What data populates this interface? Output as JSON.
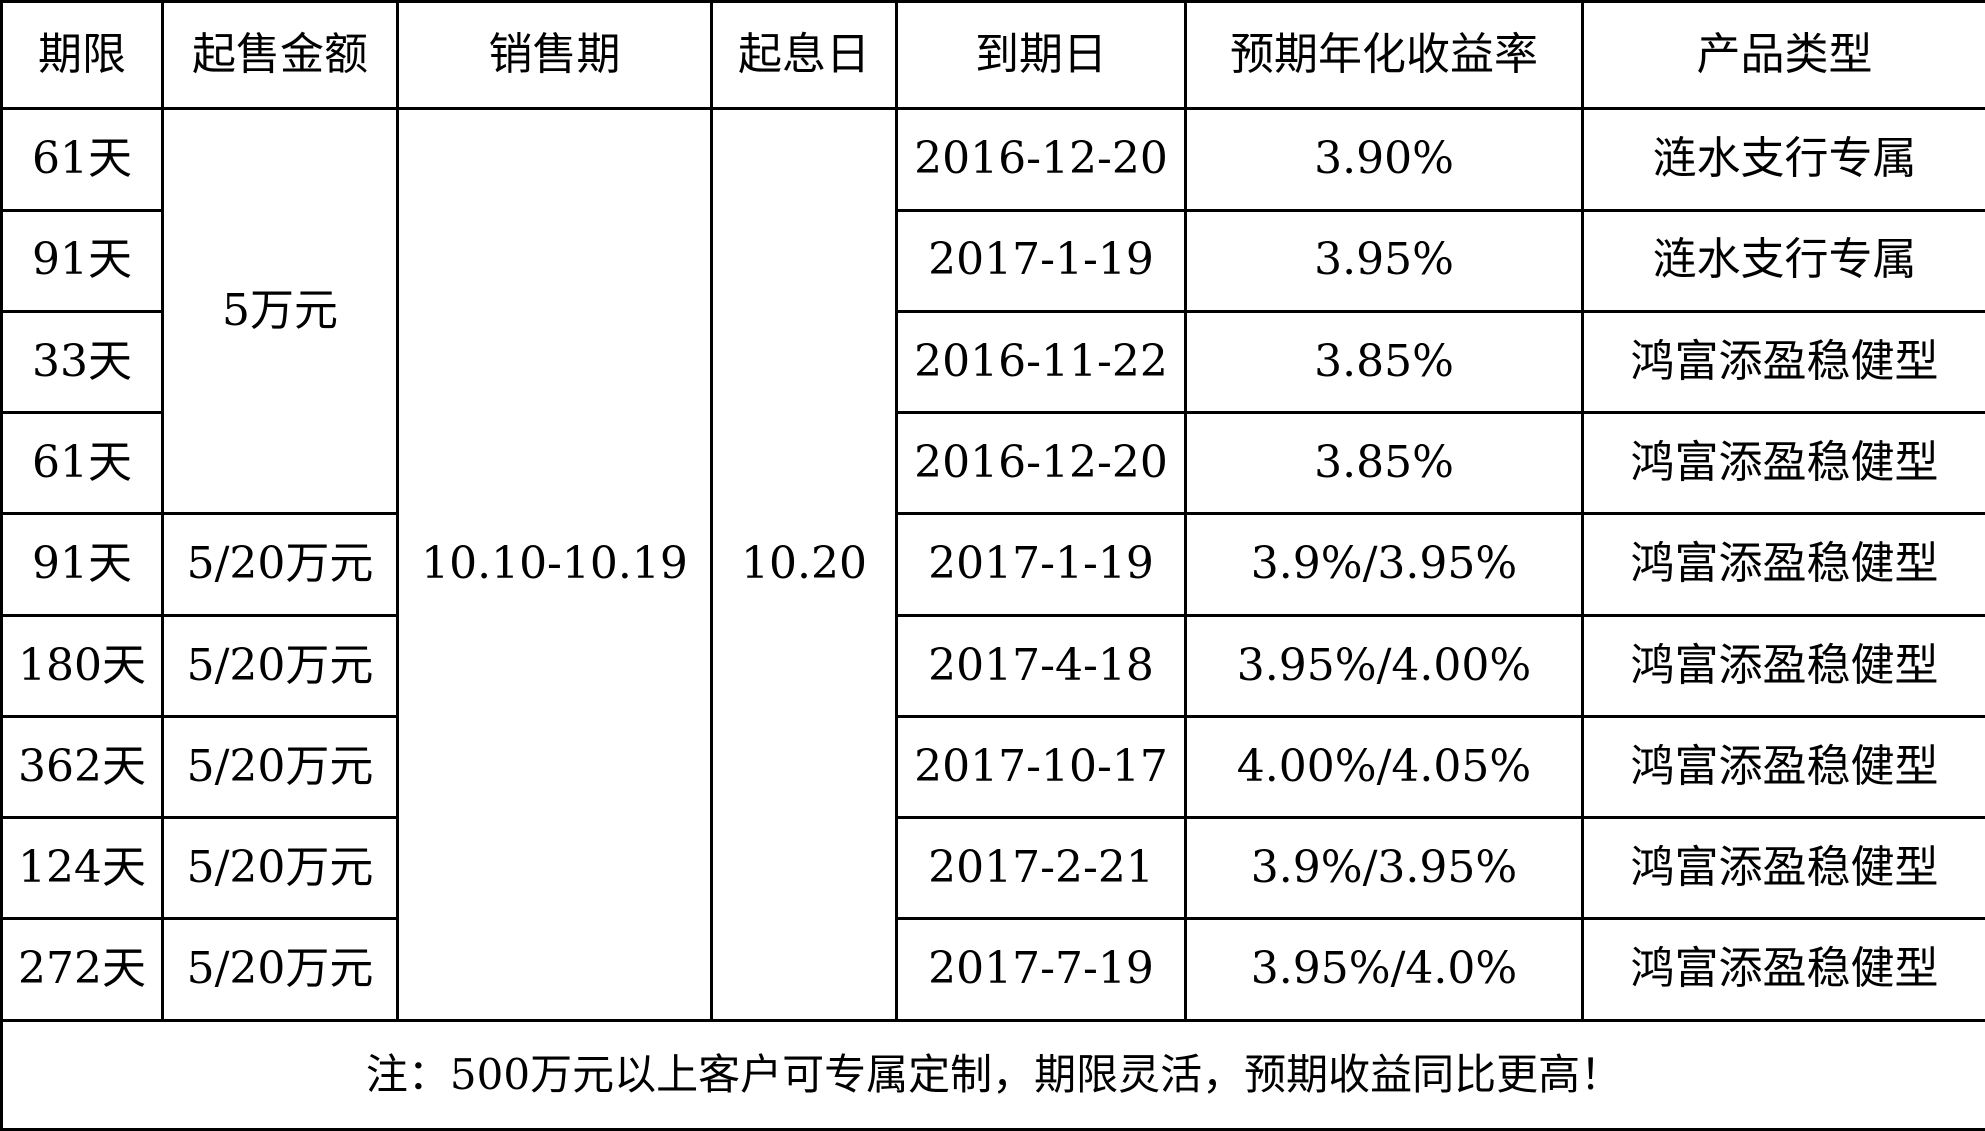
{
  "table": {
    "headers": [
      "期限",
      "起售金额",
      "销售期",
      "起息日",
      "到期日",
      "预期年化收益率",
      "产品类型"
    ],
    "shared": {
      "min_amount_first_group": "5万元",
      "sale_period": "10.10-10.19",
      "start_date": "10.20"
    },
    "rows": [
      {
        "term": "61天",
        "min_amount": "",
        "due_date": "2016-12-20",
        "rate": "3.90%",
        "type": "涟水支行专属"
      },
      {
        "term": "91天",
        "min_amount": "",
        "due_date": "2017-1-19",
        "rate": "3.95%",
        "type": "涟水支行专属"
      },
      {
        "term": "33天",
        "min_amount": "",
        "due_date": "2016-11-22",
        "rate": "3.85%",
        "type": "鸿富添盈稳健型"
      },
      {
        "term": "61天",
        "min_amount": "",
        "due_date": "2016-12-20",
        "rate": "3.85%",
        "type": "鸿富添盈稳健型"
      },
      {
        "term": "91天",
        "min_amount": "5/20万元",
        "due_date": "2017-1-19",
        "rate": "3.9%/3.95%",
        "type": "鸿富添盈稳健型"
      },
      {
        "term": "180天",
        "min_amount": "5/20万元",
        "due_date": "2017-4-18",
        "rate": "3.95%/4.00%",
        "type": "鸿富添盈稳健型"
      },
      {
        "term": "362天",
        "min_amount": "5/20万元",
        "due_date": "2017-10-17",
        "rate": "4.00%/4.05%",
        "type": "鸿富添盈稳健型"
      },
      {
        "term": "124天",
        "min_amount": "5/20万元",
        "due_date": "2017-2-21",
        "rate": "3.9%/3.95%",
        "type": "鸿富添盈稳健型"
      },
      {
        "term": "272天",
        "min_amount": "5/20万元",
        "due_date": "2017-7-19",
        "rate": "3.95%/4.0%",
        "type": "鸿富添盈稳健型"
      }
    ],
    "note": "注：500万元以上客户可专属定制，期限灵活，预期收益同比更高！"
  }
}
